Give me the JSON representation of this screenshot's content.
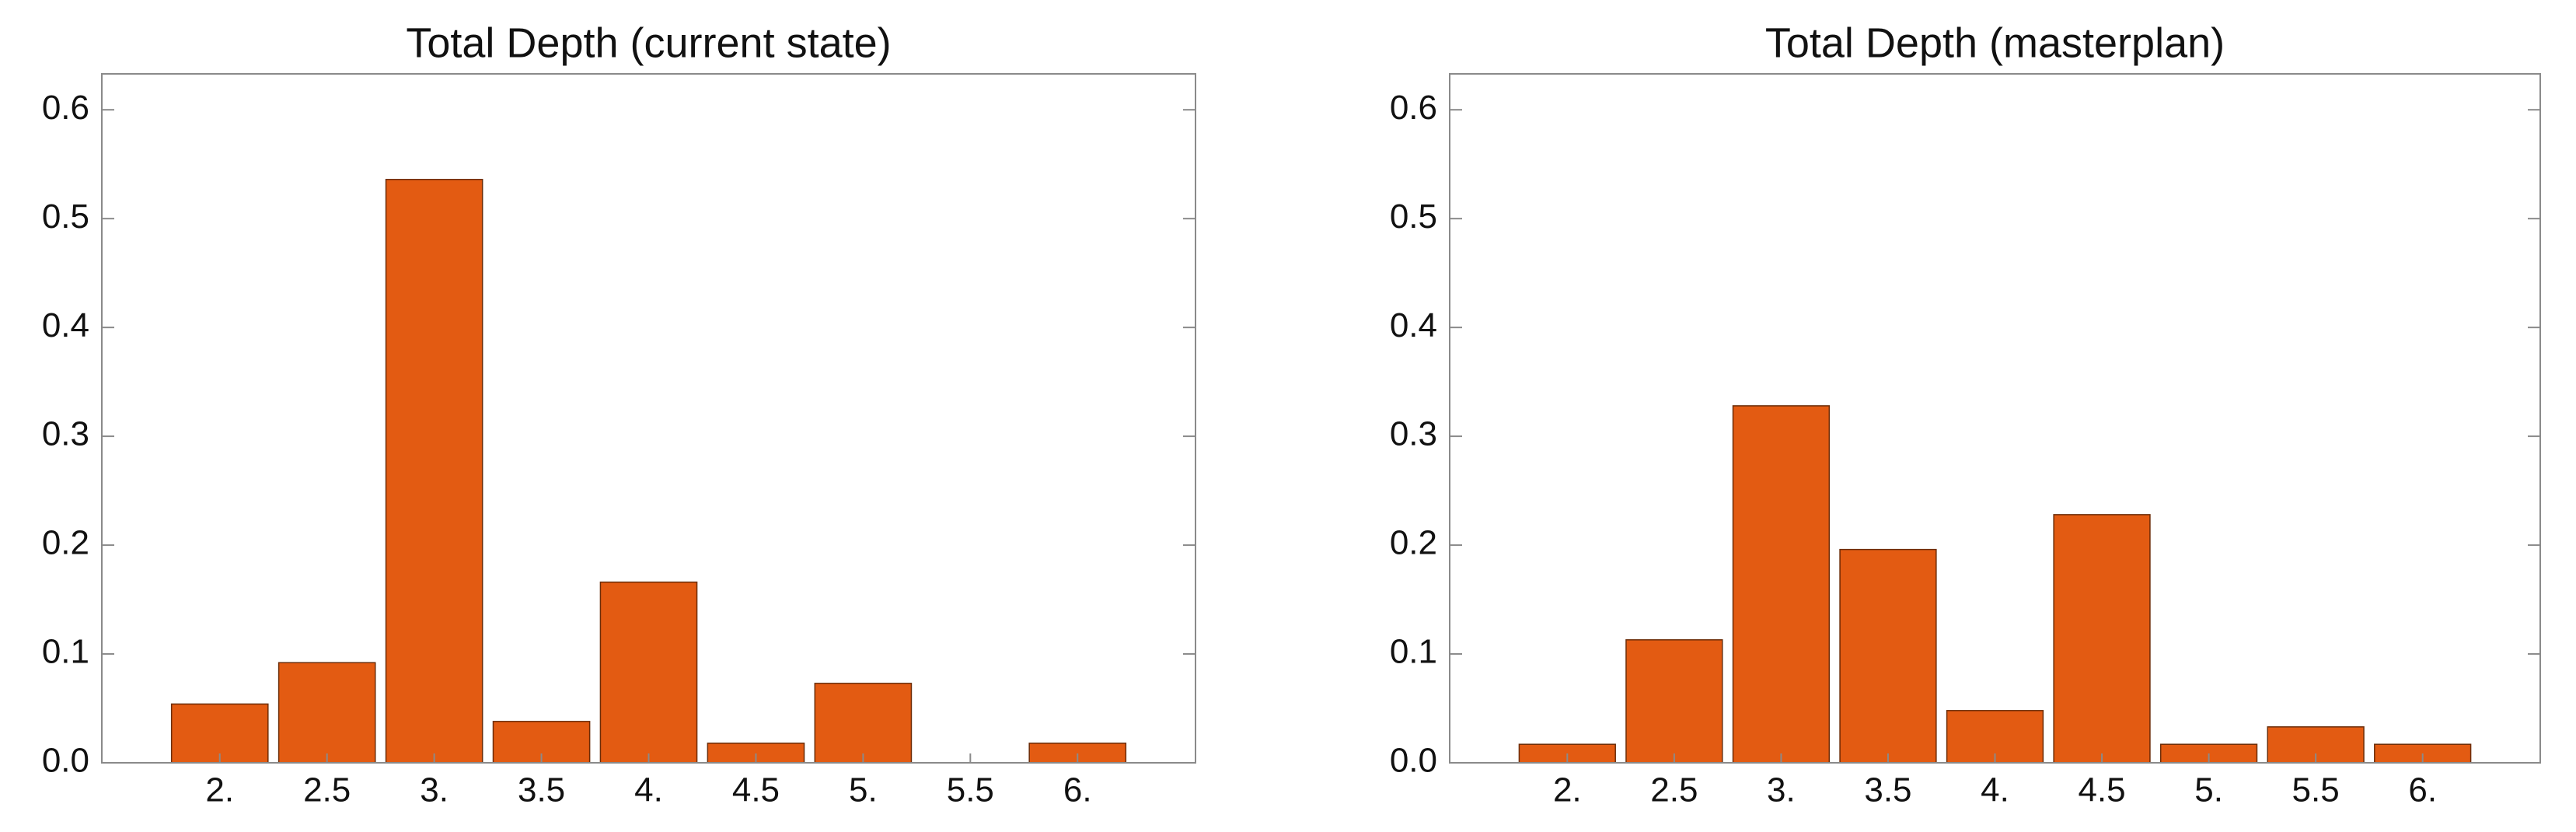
{
  "chart_data": [
    {
      "type": "bar",
      "title": "Total Depth (current state)",
      "categories": [
        "2.",
        "2.5",
        "3.",
        "3.5",
        "4.",
        "4.5",
        "5.",
        "5.5",
        "6."
      ],
      "values": [
        0.054,
        0.092,
        0.536,
        0.038,
        0.166,
        0.018,
        0.073,
        0,
        0.018
      ],
      "color": "#e35b12",
      "ylim": [
        0,
        0.633
      ],
      "yticks": [
        {
          "value": 0,
          "label": "0.0"
        },
        0.1,
        0.2,
        0.3,
        0.4,
        0.5,
        0.6
      ]
    },
    {
      "type": "bar",
      "title": "Total Depth (masterplan)",
      "categories": [
        "2.",
        "2.5",
        "3.",
        "3.5",
        "4.",
        "4.5",
        "5.",
        "5.5",
        "6."
      ],
      "values": [
        0.017,
        0.113,
        0.328,
        0.196,
        0.048,
        0.228,
        0.017,
        0.033,
        0.017
      ],
      "color": "#e35b12",
      "ylim": [
        0,
        0.633
      ],
      "yticks": [
        {
          "value": 0,
          "label": "0.0"
        },
        0.1,
        0.2,
        0.3,
        0.4,
        0.5,
        0.6
      ]
    }
  ]
}
